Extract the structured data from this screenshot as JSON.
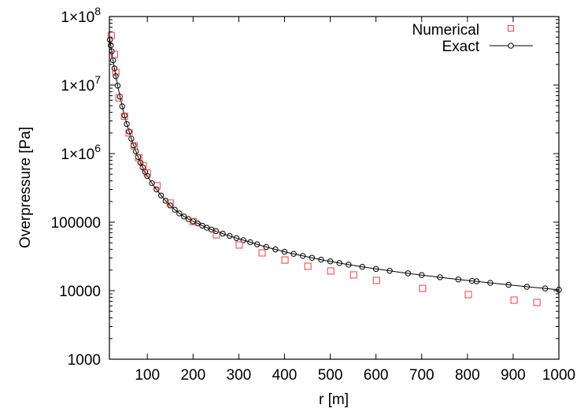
{
  "chart_data": {
    "type": "scatter",
    "title": "",
    "xlabel": "r [m]",
    "ylabel": "Overpressure [Pa]",
    "xscale": "linear",
    "yscale": "log",
    "xlim": [
      17,
      1000
    ],
    "ylim": [
      1000,
      100000000
    ],
    "x_ticks": [
      100,
      200,
      300,
      400,
      500,
      600,
      700,
      800,
      900,
      1000
    ],
    "x_tick_labels": [
      "100",
      "200",
      "300",
      "400",
      "500",
      "600",
      "700",
      "800",
      "900",
      "1000"
    ],
    "y_ticks": [
      1000,
      10000,
      100000,
      1000000,
      10000000,
      100000000
    ],
    "y_tick_labels": [
      {
        "base": "1000",
        "exp": ""
      },
      {
        "base": "10000",
        "exp": ""
      },
      {
        "base": "100000",
        "exp": ""
      },
      {
        "base": "1×10",
        "exp": "6"
      },
      {
        "base": "1×10",
        "exp": "7"
      },
      {
        "base": "1×10",
        "exp": "8"
      }
    ],
    "grid": false,
    "legend_position": "top-right",
    "series": [
      {
        "name": "Numerical",
        "style": "points",
        "marker": "open-square",
        "color": "#e8413c",
        "x": [
          21,
          28,
          31,
          38,
          50,
          60,
          71,
          81,
          91,
          100,
          121,
          150,
          200,
          251,
          301,
          351,
          401,
          451,
          501,
          551,
          601,
          702,
          802,
          902,
          952
        ],
        "y": [
          53000000,
          28000000,
          15300000,
          6500000,
          3500000,
          2000000,
          1300000,
          870000,
          670000,
          520000,
          340000,
          190000,
          102000,
          65400,
          46400,
          35600,
          28000,
          22700,
          19400,
          17000,
          14100,
          10800,
          8770,
          7280,
          6730
        ]
      },
      {
        "name": "Exact",
        "style": "linespoints",
        "marker": "open-circle",
        "color": "#000000",
        "x": [
          18,
          20,
          22,
          25,
          28,
          31,
          35,
          40,
          45,
          50,
          55,
          60,
          65,
          70,
          75,
          80,
          85,
          90,
          95,
          100,
          110,
          120,
          130,
          140,
          150,
          160,
          170,
          180,
          190,
          200,
          210,
          220,
          230,
          240,
          250,
          265,
          280,
          295,
          310,
          325,
          340,
          360,
          380,
          400,
          420,
          440,
          460,
          480,
          500,
          520,
          540,
          570,
          600,
          630,
          670,
          700,
          740,
          780,
          810,
          820,
          850,
          890,
          930,
          970,
          1000
        ],
        "y": [
          46000000,
          38000000,
          31000000,
          23000000,
          17500000,
          13500000,
          9800000,
          6800000,
          4900000,
          3600000,
          2700000,
          2100000,
          1650000,
          1320000,
          1080000,
          890000,
          740000,
          630000,
          540000,
          470000,
          370000,
          300000,
          245000,
          205000,
          175000,
          152000,
          134000,
          121000,
          111000,
          103000,
          96000,
          89000,
          83000,
          78000,
          74000,
          68000,
          63000,
          58500,
          54500,
          51000,
          47500,
          43500,
          40000,
          37000,
          34500,
          32200,
          30200,
          28400,
          26800,
          25300,
          24000,
          22300,
          20800,
          19500,
          17900,
          16900,
          15700,
          14600,
          13900,
          13700,
          13000,
          12200,
          11400,
          10800,
          10300
        ]
      }
    ]
  },
  "legend": {
    "numerical_label": "Numerical",
    "exact_label": "Exact"
  },
  "axes": {
    "xlabel": "r [m]",
    "ylabel": "Overpressure [Pa]"
  }
}
